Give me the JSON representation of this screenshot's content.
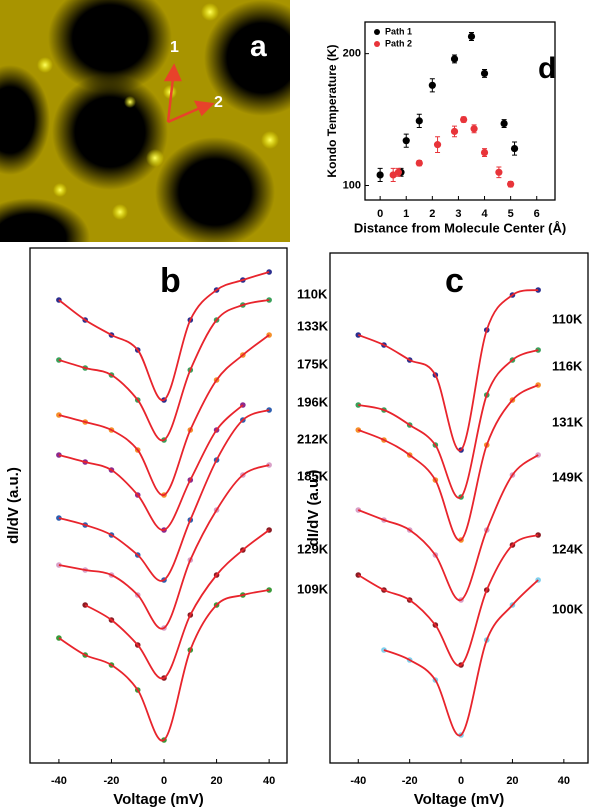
{
  "image": {
    "panel_label": "a",
    "arrow_labels": [
      "1",
      "2"
    ]
  },
  "chart_data": [
    {
      "type": "scatter",
      "panel_label": "d",
      "xlabel": "Distance from Molecule Center (Å)",
      "ylabel": "Kondo Temperature (K)",
      "xlim": [
        -0.58,
        6.7
      ],
      "ylim": [
        89,
        224
      ],
      "xticks": [
        0,
        1,
        2,
        3,
        4,
        5,
        6
      ],
      "yticks": [
        100,
        200
      ],
      "legend": "upper-left",
      "series": [
        {
          "name": "Path 1",
          "color": "#000000",
          "x": [
            0,
            0.8,
            1,
            1.5,
            2,
            2.85,
            3.5,
            4,
            4.75,
            5.15
          ],
          "values": [
            108,
            110,
            134,
            149,
            176,
            196,
            213,
            185,
            147,
            128
          ],
          "errors": [
            5,
            3,
            5,
            5,
            5,
            3,
            3,
            3,
            3,
            5
          ]
        },
        {
          "name": "Path 2",
          "color": "#e8343a",
          "x": [
            0.5,
            0.7,
            1.5,
            2.2,
            2.85,
            3.2,
            3.6,
            4,
            4.55,
            5
          ],
          "values": [
            108,
            110,
            117,
            131,
            141,
            150,
            143,
            125,
            110,
            101
          ],
          "errors": [
            5,
            3,
            2,
            6,
            4,
            2,
            3,
            3,
            4,
            2
          ]
        }
      ]
    },
    {
      "type": "spectra",
      "panel_label": "b",
      "xlabel": "Voltage (mV)",
      "ylabel": "dI/dV (a.u.)",
      "fit_color": "#e8242c",
      "xlim": [
        -51,
        46.8
      ],
      "ylim": [
        0,
        515
      ],
      "xticks": [
        -40,
        -20,
        0,
        20,
        40
      ],
      "x": [
        -40,
        -30,
        -20,
        -10,
        0,
        10,
        20,
        30,
        40
      ],
      "series": [
        {
          "name": "110K",
          "color": "#2b2f8f",
          "values": [
            463,
            443,
            428,
            413,
            363,
            443,
            473,
            483,
            491
          ]
        },
        {
          "name": "133K",
          "color": "#3aa05a",
          "values": [
            403,
            395,
            388,
            363,
            323,
            393,
            443,
            458,
            463
          ]
        },
        {
          "name": "175K",
          "color": "#f5902a",
          "values": [
            348,
            341,
            333,
            313,
            268,
            333,
            383,
            408,
            428
          ]
        },
        {
          "name": "196K",
          "color": "#8b2b8f",
          "values": [
            308,
            301,
            293,
            268,
            233,
            283,
            333,
            358,
            null
          ]
        },
        {
          "name": "212K",
          "color": "#2e5fb0",
          "values": [
            245,
            238,
            228,
            208,
            183,
            243,
            303,
            343,
            353
          ]
        },
        {
          "name": "185K",
          "color": "#d9a0c8",
          "values": [
            198,
            193,
            188,
            168,
            135,
            203,
            253,
            288,
            298
          ]
        },
        {
          "name": "129K",
          "color": "#8b1c24",
          "values": [
            null,
            158,
            143,
            118,
            85,
            148,
            188,
            213,
            233
          ]
        },
        {
          "name": "109K",
          "color": "#3a9a3a",
          "values": [
            125,
            108,
            98,
            73,
            23,
            113,
            158,
            168,
            173
          ]
        }
      ]
    },
    {
      "type": "spectra",
      "panel_label": "c",
      "xlabel": "Voltage (mV)",
      "ylabel": "dI/dV (a.u.)",
      "fit_color": "#e8242c",
      "xlim": [
        -51,
        49.4
      ],
      "ylim": [
        0,
        510
      ],
      "xticks": [
        -40,
        -20,
        0,
        20,
        40
      ],
      "x": [
        -40,
        -30,
        -20,
        -10,
        0,
        10,
        20,
        30,
        40
      ],
      "series": [
        {
          "name": "110K",
          "color": "#2b2f8f",
          "values": [
            428,
            418,
            403,
            388,
            313,
            433,
            468,
            473,
            null
          ]
        },
        {
          "name": "116K",
          "color": "#3aa05a",
          "values": [
            358,
            353,
            338,
            318,
            266,
            368,
            403,
            413,
            null
          ]
        },
        {
          "name": "131K",
          "color": "#f5902a",
          "values": [
            333,
            323,
            308,
            283,
            223,
            318,
            363,
            378,
            null
          ]
        },
        {
          "name": "149K",
          "color": "#d9a0c8",
          "values": [
            253,
            243,
            233,
            208,
            163,
            233,
            288,
            308,
            null
          ]
        },
        {
          "name": "124K",
          "color": "#8b1c24",
          "values": [
            188,
            173,
            163,
            138,
            98,
            173,
            218,
            228,
            null
          ]
        },
        {
          "name": "100K",
          "color": "#7fd0ee",
          "values": [
            null,
            113,
            103,
            83,
            28,
            123,
            158,
            183,
            null
          ]
        }
      ]
    }
  ]
}
